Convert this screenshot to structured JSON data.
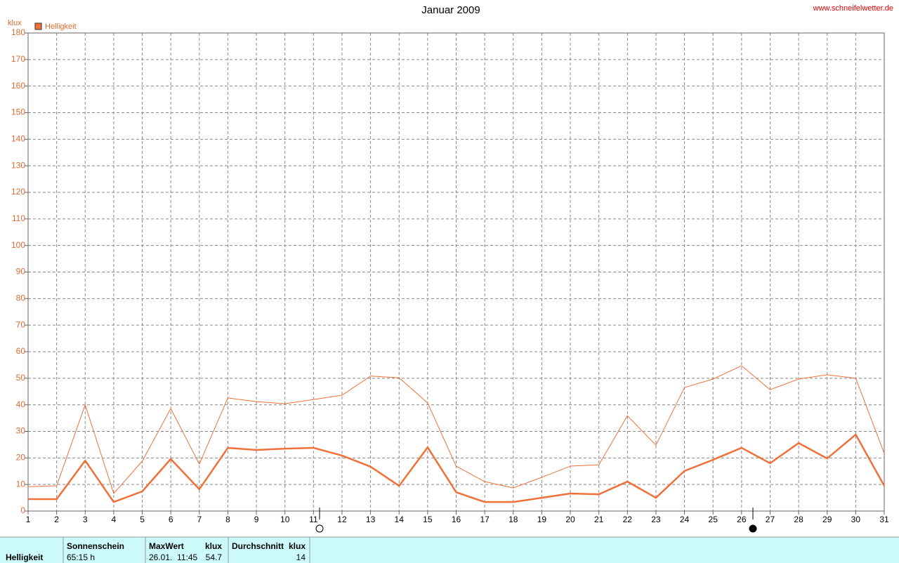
{
  "chart_data": {
    "type": "line",
    "title": "Januar 2009",
    "source": "www.schneifelwetter.de",
    "y_label": "klux",
    "x": [
      1,
      2,
      3,
      4,
      5,
      6,
      7,
      8,
      9,
      10,
      11,
      12,
      13,
      14,
      15,
      16,
      17,
      18,
      19,
      20,
      21,
      22,
      23,
      24,
      25,
      26,
      27,
      28,
      29,
      30,
      31
    ],
    "series": [
      {
        "name": "Helligkeit",
        "color": "#f07038",
        "width": 2.5,
        "values": [
          4.5,
          4.5,
          19,
          3.4,
          7.4,
          19.6,
          8.2,
          23.8,
          23,
          23.5,
          23.8,
          20.9,
          16.7,
          9.5,
          24,
          7.1,
          3.4,
          3.4,
          5,
          6.6,
          6.3,
          11.1,
          5,
          15.1,
          19.3,
          23.8,
          18,
          25.6,
          19.8,
          28.8,
          9.5
        ]
      },
      {
        "color": "#f07038",
        "width": 1,
        "values": [
          9.2,
          9.5,
          40,
          6.6,
          18.8,
          38.6,
          17.7,
          42.6,
          41.2,
          40.4,
          42,
          43.6,
          50.8,
          50.2,
          40.7,
          16.9,
          11.1,
          8.7,
          12.7,
          16.9,
          17.4,
          35.9,
          24.8,
          46.5,
          49.7,
          54.7,
          45.7,
          49.7,
          51.3,
          50,
          21.7
        ]
      }
    ],
    "xlim": [
      1,
      31
    ],
    "xticks": [
      1,
      2,
      3,
      4,
      5,
      6,
      7,
      8,
      9,
      10,
      11,
      12,
      13,
      14,
      15,
      16,
      17,
      18,
      19,
      20,
      21,
      22,
      23,
      24,
      25,
      26,
      27,
      28,
      29,
      30,
      31
    ],
    "ylim": [
      0,
      180
    ],
    "yticks": [
      0,
      10,
      20,
      30,
      40,
      50,
      60,
      70,
      80,
      90,
      100,
      110,
      120,
      130,
      140,
      150,
      160,
      170,
      180
    ],
    "grid": true
  },
  "table": {
    "row_label": "Helligkeit",
    "sun_header": "Sonnenschein",
    "sun_value": "65:15 h",
    "max_header": "MaxWert",
    "max_unit": "klux",
    "max_time": "26.01.  11:45",
    "max_value": "54.7",
    "avg_header": "Durchschnitt",
    "avg_unit": "klux",
    "avg_value": "14"
  }
}
